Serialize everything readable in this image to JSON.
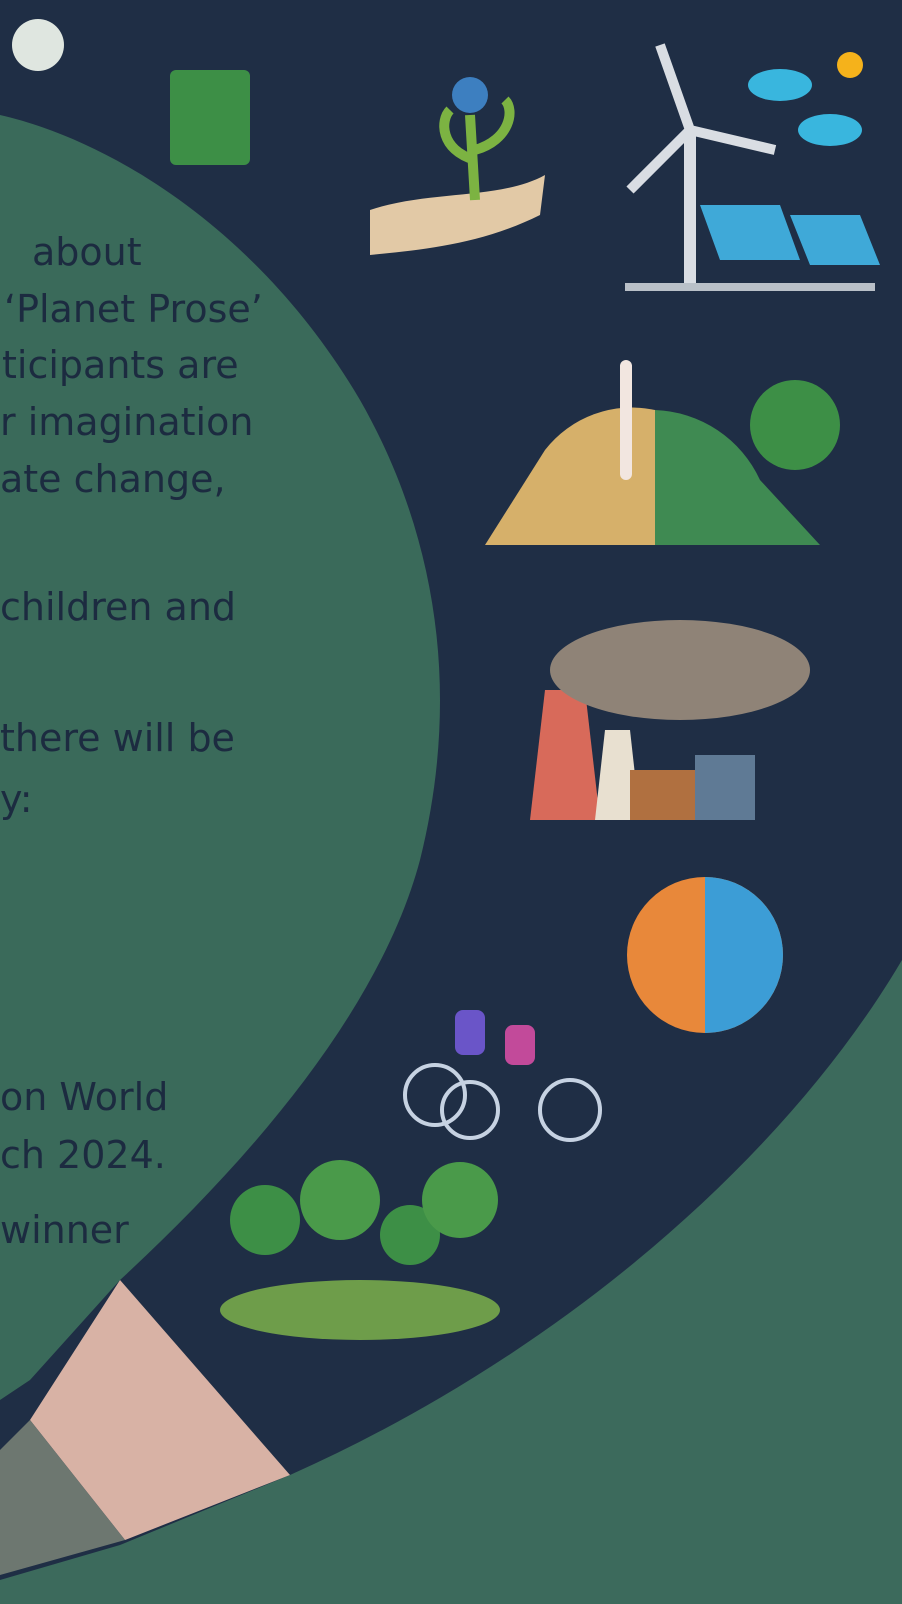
{
  "paragraph_lines": [
    "about",
    "‘Planet Prose’",
    "ticipants are",
    "r imagination",
    "ate change,",
    "children and",
    "there will be",
    "y:",
    "on World",
    "ch 2024.",
    "winner"
  ]
}
